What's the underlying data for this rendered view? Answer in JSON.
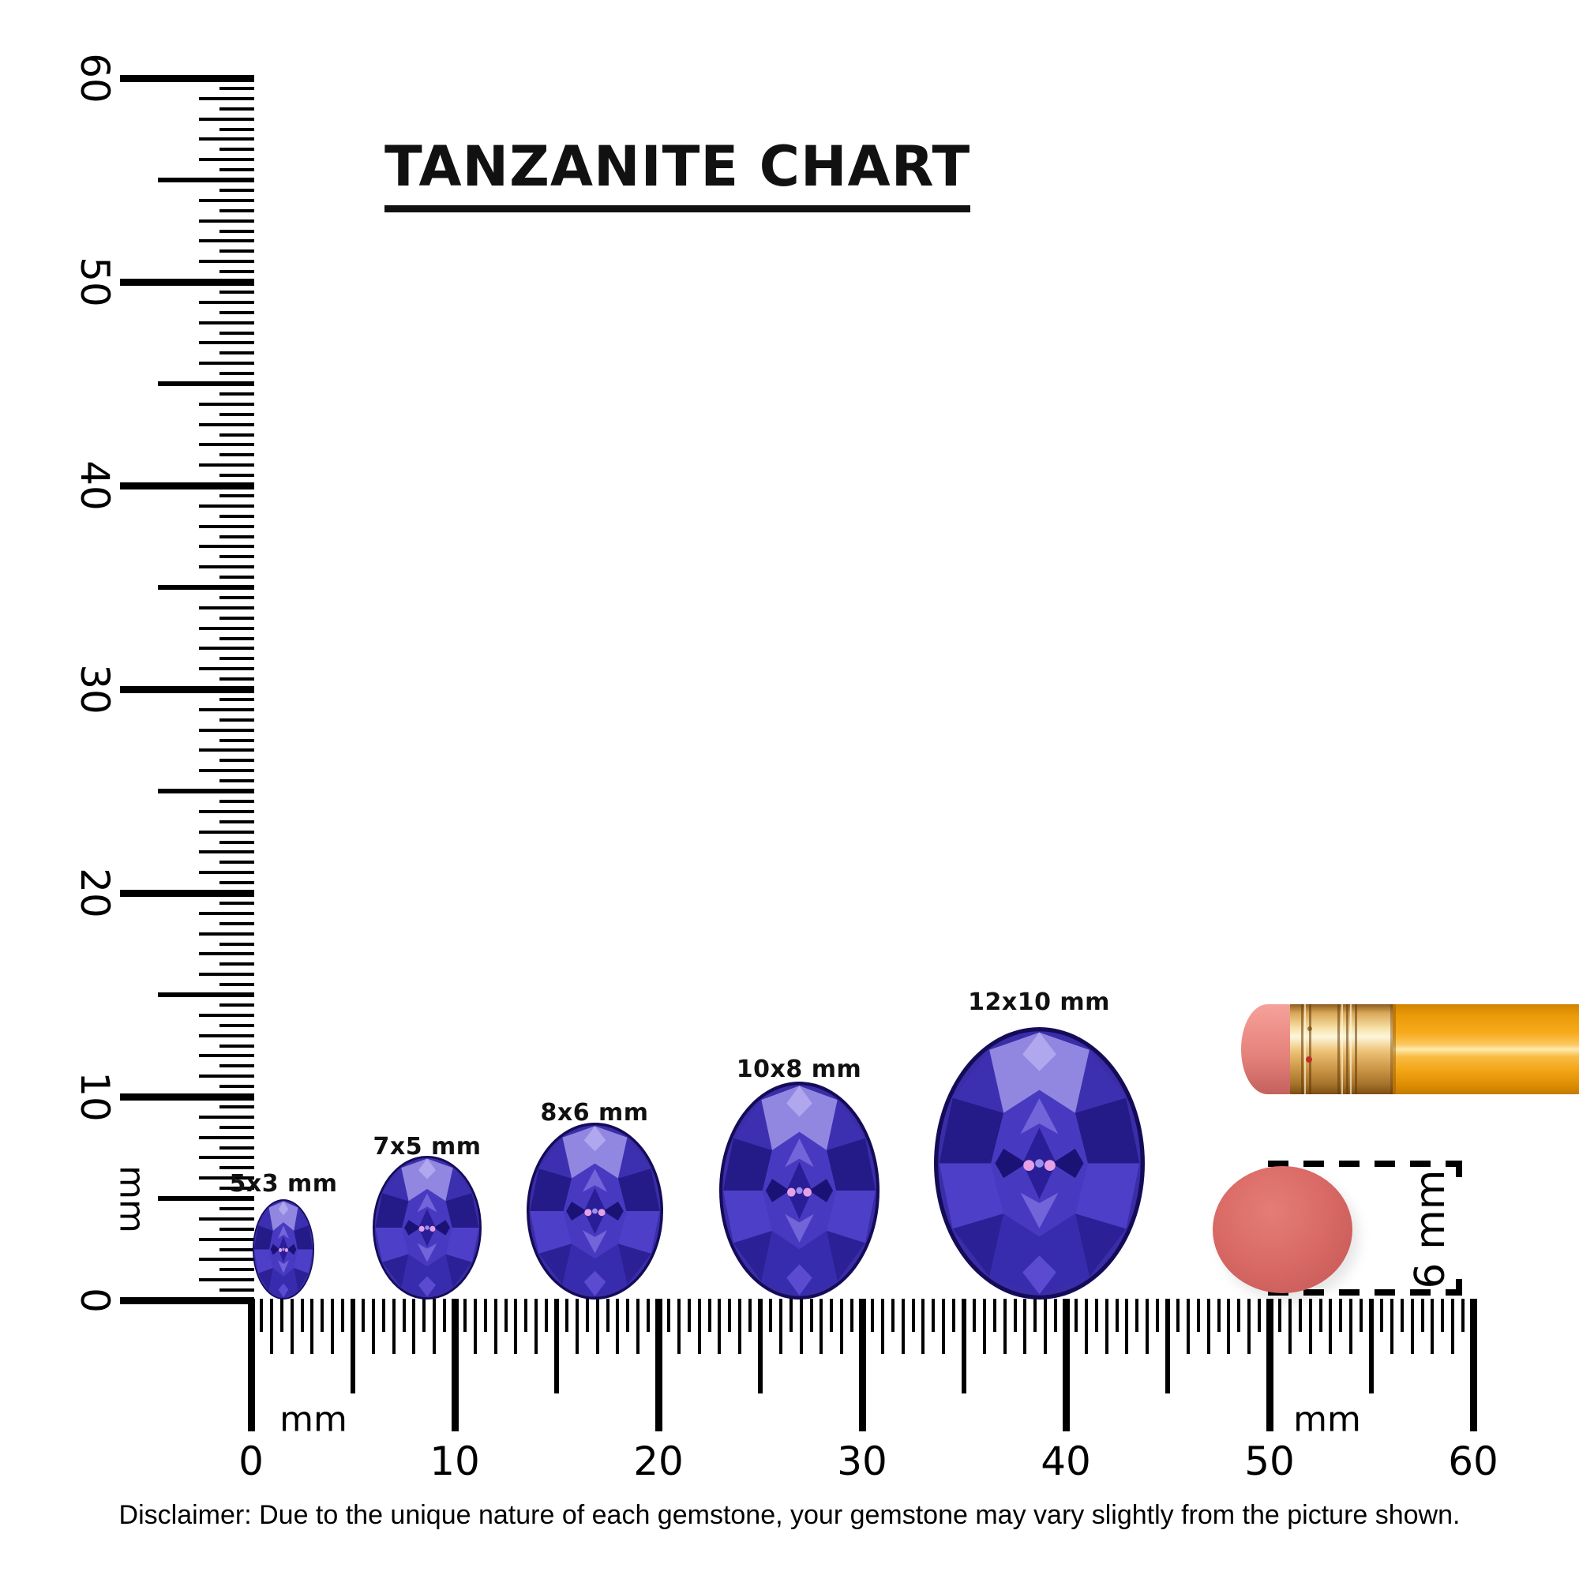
{
  "title": "TANZANITE CHART",
  "disclaimer": "Disclaimer: Due to the unique nature of each gemstone, your gemstone may vary slightly from the picture shown.",
  "vertical_ruler": {
    "unit": "mm",
    "tick_labels": [
      "0",
      "10",
      "20",
      "30",
      "40",
      "50",
      "60"
    ]
  },
  "horizontal_ruler": {
    "unit_label_left": "mm",
    "unit_label_right": "mm",
    "tick_labels": [
      "0",
      "10",
      "20",
      "30",
      "40",
      "50",
      "60"
    ]
  },
  "gems": [
    {
      "label": "5x3 mm",
      "size_mm": "5x3"
    },
    {
      "label": "7x5 mm",
      "size_mm": "7x5"
    },
    {
      "label": "8x6 mm",
      "size_mm": "8x6"
    },
    {
      "label": "10x8 mm",
      "size_mm": "10x8"
    },
    {
      "label": "12x10 mm",
      "size_mm": "12x10"
    }
  ],
  "reference": {
    "dimension_label": "6 mm"
  },
  "colors": {
    "gem_base": "#3a2da8",
    "gem_dark": "#140c58",
    "gem_light": "#9187e0",
    "pencil_orange": "#f7ab1c",
    "eraser_pink": "#ef938c",
    "ferrule_gold": "#eec378",
    "disc_red": "#da6b67",
    "ink": "#000000"
  }
}
